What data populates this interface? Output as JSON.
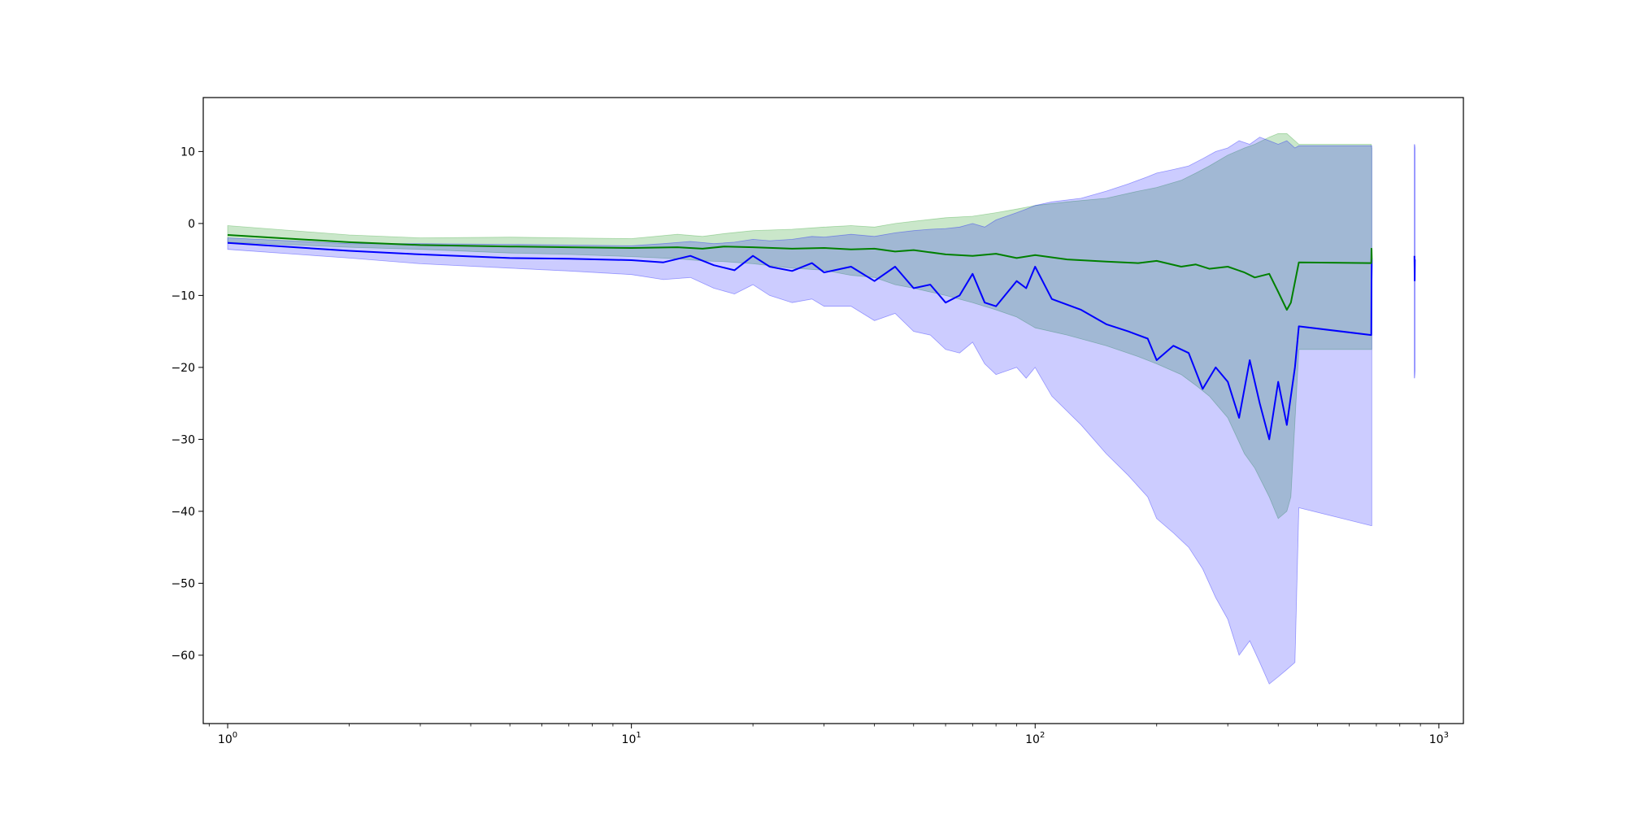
{
  "chart_data": {
    "type": "line",
    "title": "",
    "xlabel": "",
    "ylabel": "",
    "xscale": "log",
    "xlim": [
      0.87,
      1150
    ],
    "ylim": [
      -69.5,
      17.5
    ],
    "grid": false,
    "x_ticks": [
      {
        "value": 1,
        "base": "10",
        "exp": "0"
      },
      {
        "value": 10,
        "base": "10",
        "exp": "1"
      },
      {
        "value": 100,
        "base": "10",
        "exp": "2"
      },
      {
        "value": 1000,
        "base": "10",
        "exp": "3"
      }
    ],
    "y_ticks": [
      {
        "value": 10,
        "label": "10"
      },
      {
        "value": 0,
        "label": "0"
      },
      {
        "value": -10,
        "label": "−10"
      },
      {
        "value": -20,
        "label": "−20"
      },
      {
        "value": -30,
        "label": "−30"
      },
      {
        "value": -40,
        "label": "−40"
      },
      {
        "value": -50,
        "label": "−50"
      },
      {
        "value": -60,
        "label": "−60"
      }
    ],
    "series": [
      {
        "color": "#008000",
        "band_color": "#2ca02c",
        "band_opacity": 0.25,
        "x": [
          1,
          2,
          3,
          5,
          7,
          10,
          13,
          15,
          17,
          20,
          25,
          30,
          35,
          40,
          45,
          50,
          60,
          70,
          80,
          90,
          100,
          120,
          150,
          180,
          200,
          230,
          250,
          270,
          300,
          330,
          350,
          380,
          400,
          420,
          430,
          450,
          680,
          681,
          682
        ],
        "y": [
          -1.6,
          -2.6,
          -3.0,
          -3.2,
          -3.3,
          -3.4,
          -3.3,
          -3.5,
          -3.2,
          -3.3,
          -3.5,
          -3.4,
          -3.6,
          -3.5,
          -3.9,
          -3.7,
          -4.3,
          -4.5,
          -4.2,
          -4.8,
          -4.4,
          -5.0,
          -5.3,
          -5.5,
          -5.2,
          -6.0,
          -5.7,
          -6.3,
          -6.0,
          -6.8,
          -7.5,
          -7.0,
          -9.5,
          -12.0,
          -11.0,
          -5.4,
          -5.5,
          -3.5,
          -5.0
        ],
        "upper": [
          -0.3,
          -1.6,
          -2.0,
          -1.9,
          -2.0,
          -2.1,
          -1.5,
          -1.8,
          -1.4,
          -1.0,
          -0.8,
          -0.5,
          -0.3,
          -0.5,
          0.0,
          0.3,
          0.8,
          1.0,
          1.5,
          2.0,
          2.5,
          3.0,
          3.5,
          4.5,
          5.0,
          6.0,
          7.0,
          8.0,
          9.5,
          10.5,
          11.0,
          12.0,
          12.5,
          12.5,
          12.0,
          11.0,
          11.0,
          10.5,
          10.5
        ],
        "lower": [
          -2.6,
          -3.3,
          -3.6,
          -4.1,
          -4.3,
          -4.6,
          -4.9,
          -5.2,
          -5.3,
          -5.6,
          -6.2,
          -6.5,
          -7.2,
          -7.5,
          -8.5,
          -9.0,
          -10.0,
          -11.0,
          -12.0,
          -13.0,
          -14.5,
          -15.5,
          -17.0,
          -18.5,
          -19.5,
          -21.0,
          -22.5,
          -24.0,
          -27.0,
          -32.0,
          -34.0,
          -38.0,
          -41.0,
          -40.0,
          -38.0,
          -17.5,
          -17.5,
          -17.5,
          -17.5
        ]
      },
      {
        "color": "#0000ff",
        "band_color": "#0000ff",
        "band_opacity": 0.2,
        "x": [
          1,
          2,
          3,
          5,
          7,
          10,
          12,
          14,
          16,
          18,
          20,
          22,
          25,
          28,
          30,
          35,
          40,
          45,
          50,
          55,
          60,
          65,
          70,
          75,
          80,
          90,
          95,
          100,
          110,
          130,
          150,
          170,
          190,
          200,
          220,
          240,
          260,
          280,
          300,
          320,
          340,
          360,
          380,
          400,
          420,
          440,
          450,
          680,
          681,
          682
        ],
        "y": [
          -2.7,
          -3.8,
          -4.3,
          -4.8,
          -4.9,
          -5.1,
          -5.4,
          -4.5,
          -5.8,
          -6.5,
          -4.5,
          -6.0,
          -6.6,
          -5.5,
          -6.8,
          -6.0,
          -8.0,
          -6.0,
          -9.0,
          -8.5,
          -11.0,
          -10.0,
          -7.0,
          -11.0,
          -11.5,
          -8.0,
          -9.0,
          -6.0,
          -10.5,
          -12.0,
          -14.0,
          -15.0,
          -16.0,
          -19.0,
          -17.0,
          -18.0,
          -23.0,
          -20.0,
          -22.0,
          -27.0,
          -19.0,
          -25.0,
          -30.0,
          -22.0,
          -28.0,
          -20.0,
          -14.3,
          -15.5,
          -8.0,
          -5.0
        ],
        "upper": [
          -2.0,
          -2.8,
          -2.8,
          -2.9,
          -3.0,
          -3.1,
          -2.8,
          -2.5,
          -2.8,
          -2.6,
          -2.2,
          -2.4,
          -2.2,
          -1.8,
          -1.9,
          -1.5,
          -1.8,
          -1.3,
          -1.0,
          -0.8,
          -0.7,
          -0.5,
          0.0,
          -0.5,
          0.5,
          1.5,
          2.0,
          2.5,
          3.0,
          3.5,
          4.5,
          5.5,
          6.5,
          7.0,
          7.5,
          8.0,
          9.0,
          10.0,
          10.5,
          11.5,
          11.0,
          12.0,
          11.5,
          11.0,
          11.5,
          10.5,
          10.8,
          10.8,
          10.8,
          10.8
        ],
        "lower": [
          -3.6,
          -4.8,
          -5.6,
          -6.2,
          -6.6,
          -7.1,
          -7.8,
          -7.5,
          -9.0,
          -9.8,
          -8.5,
          -10.0,
          -11.0,
          -10.5,
          -11.5,
          -11.5,
          -13.5,
          -12.5,
          -15.0,
          -15.5,
          -17.5,
          -18.0,
          -16.5,
          -19.5,
          -21.0,
          -20.0,
          -21.5,
          -20.0,
          -24.0,
          -28.0,
          -32.0,
          -35.0,
          -38.0,
          -41.0,
          -43.0,
          -45.0,
          -48.0,
          -52.0,
          -55.0,
          -60.0,
          -58.0,
          -61.0,
          -64.0,
          -63.0,
          -62.0,
          -61.0,
          -39.5,
          -42.0,
          -42.0,
          -42.0
        ]
      }
    ],
    "extra_segment": {
      "color": "#0000ff",
      "x": [
        870,
        871,
        872
      ],
      "y": [
        -4.5,
        -8.0,
        -5.0
      ],
      "upper": [
        11.0,
        10.8,
        10.5
      ],
      "lower": [
        -21.5,
        -21.0,
        -20.5
      ]
    }
  }
}
